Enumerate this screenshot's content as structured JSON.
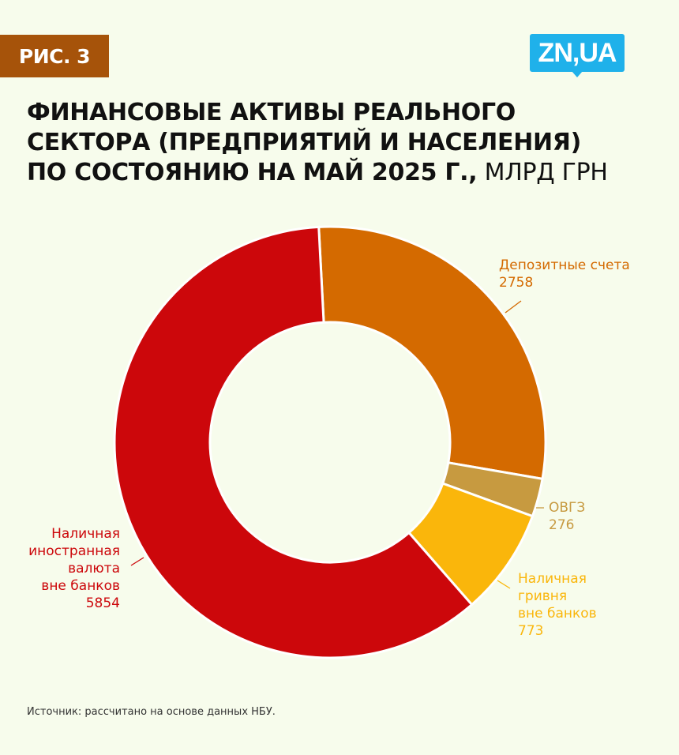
{
  "badge": "РИС. 3",
  "logo": "ZN,UA",
  "title": {
    "lines": [
      "ФИНАНСОВЫЕ АКТИВЫ РЕАЛЬНОГО",
      "СЕКТОРА (ПРЕДПРИЯТИЙ И НАСЕЛЕНИЯ)",
      "ПО СОСТОЯНИЮ НА МАЙ 2025 Г.,"
    ],
    "unit": " МЛРД ГРН"
  },
  "chart_data": {
    "type": "pie",
    "donut": true,
    "title": "ФИНАНСОВЫЕ АКТИВЫ РЕАЛЬНОГО СЕКТОРА (ПРЕДПРИЯТИЙ И НАСЕЛЕНИЯ) ПО СОСТОЯНИЮ НА МАЙ 2025 Г., МЛРД ГРН",
    "slices": [
      {
        "label": "Депозитные счета",
        "value": 2758,
        "color": "#d46a00",
        "value_text": "2758"
      },
      {
        "label": "ОВГЗ",
        "value": 276,
        "color": "#c79a40",
        "value_text": "276"
      },
      {
        "label": "Наличная гривня вне банков",
        "value": 773,
        "color": "#fab60b",
        "value_text": "773"
      },
      {
        "label": "Наличная иностранная валюта вне банков",
        "value": 5854,
        "color": "#cc070b",
        "value_text": "5854"
      }
    ],
    "label_lines": [
      [
        "Депозитные счета"
      ],
      [
        "ОВГЗ"
      ],
      [
        "Наличная",
        "гривня",
        "вне банков"
      ],
      [
        "Наличная",
        "иностранная",
        "валюта",
        "вне банков"
      ]
    ]
  },
  "source": "Источник: рассчитано на основе данных НБУ."
}
